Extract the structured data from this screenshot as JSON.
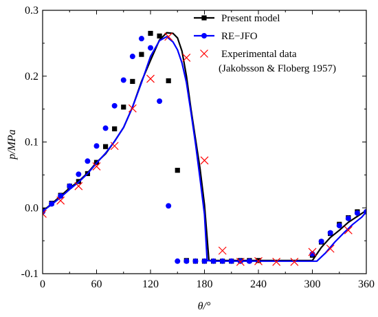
{
  "chart_data": {
    "type": "line",
    "xlabel": "θ/°",
    "ylabel": "p/MPa",
    "xlim": [
      0,
      360
    ],
    "ylim": [
      -0.1,
      0.3
    ],
    "x_ticks": [
      0,
      60,
      120,
      180,
      240,
      300,
      360
    ],
    "x_tick_labels": [
      "0",
      "60",
      "120",
      "180",
      "240",
      "300",
      "360"
    ],
    "y_ticks": [
      -0.1,
      0.0,
      0.1,
      0.2,
      0.3
    ],
    "y_tick_labels": [
      "-0.1",
      "0.0",
      "0.1",
      "0.2",
      "0.3"
    ],
    "legend_position": "top-right",
    "grid": false,
    "series": [
      {
        "name": "Present model",
        "color": "#000000",
        "marker": "square",
        "curve": [
          [
            0,
            -0.005
          ],
          [
            10,
            0.006
          ],
          [
            20,
            0.018
          ],
          [
            30,
            0.03
          ],
          [
            40,
            0.04
          ],
          [
            50,
            0.053
          ],
          [
            60,
            0.069
          ],
          [
            70,
            0.082
          ],
          [
            80,
            0.101
          ],
          [
            90,
            0.122
          ],
          [
            100,
            0.153
          ],
          [
            110,
            0.192
          ],
          [
            120,
            0.224
          ],
          [
            130,
            0.255
          ],
          [
            138,
            0.266
          ],
          [
            145,
            0.265
          ],
          [
            150,
            0.258
          ],
          [
            155,
            0.238
          ],
          [
            160,
            0.2
          ],
          [
            165,
            0.15
          ],
          [
            170,
            0.105
          ],
          [
            175,
            0.06
          ],
          [
            180,
            0.005
          ],
          [
            185,
            -0.08
          ],
          [
            190,
            -0.08
          ],
          [
            300,
            -0.08
          ],
          [
            310,
            -0.06
          ],
          [
            320,
            -0.045
          ],
          [
            330,
            -0.034
          ],
          [
            340,
            -0.022
          ],
          [
            350,
            -0.013
          ],
          [
            360,
            -0.004
          ]
        ],
        "markers": [
          [
            0,
            -0.004
          ],
          [
            10,
            0.007
          ],
          [
            20,
            0.019
          ],
          [
            30,
            0.033
          ],
          [
            40,
            0.04
          ],
          [
            50,
            0.052
          ],
          [
            60,
            0.069
          ],
          [
            70,
            0.093
          ],
          [
            80,
            0.12
          ],
          [
            90,
            0.153
          ],
          [
            100,
            0.192
          ],
          [
            110,
            0.233
          ],
          [
            120,
            0.265
          ],
          [
            130,
            0.261
          ],
          [
            140,
            0.193
          ],
          [
            150,
            0.057
          ],
          [
            160,
            -0.08
          ],
          [
            170,
            -0.081
          ],
          [
            180,
            -0.081
          ],
          [
            190,
            -0.081
          ],
          [
            200,
            -0.081
          ],
          [
            210,
            -0.081
          ],
          [
            220,
            -0.08
          ],
          [
            230,
            -0.08
          ],
          [
            240,
            -0.08
          ],
          [
            300,
            -0.072
          ],
          [
            310,
            -0.052
          ],
          [
            320,
            -0.039
          ],
          [
            330,
            -0.025
          ],
          [
            340,
            -0.015
          ],
          [
            350,
            -0.006
          ]
        ]
      },
      {
        "name": "RE−JFO",
        "color": "#0000ff",
        "marker": "circle",
        "curve": [
          [
            0,
            -0.005
          ],
          [
            10,
            0.005
          ],
          [
            20,
            0.016
          ],
          [
            30,
            0.028
          ],
          [
            40,
            0.039
          ],
          [
            50,
            0.052
          ],
          [
            60,
            0.068
          ],
          [
            70,
            0.083
          ],
          [
            80,
            0.101
          ],
          [
            90,
            0.122
          ],
          [
            100,
            0.153
          ],
          [
            110,
            0.19
          ],
          [
            120,
            0.23
          ],
          [
            130,
            0.254
          ],
          [
            138,
            0.26
          ],
          [
            145,
            0.252
          ],
          [
            150,
            0.24
          ],
          [
            155,
            0.22
          ],
          [
            160,
            0.19
          ],
          [
            165,
            0.145
          ],
          [
            170,
            0.098
          ],
          [
            175,
            0.045
          ],
          [
            180,
            -0.01
          ],
          [
            183,
            -0.08
          ],
          [
            190,
            -0.081
          ],
          [
            305,
            -0.081
          ],
          [
            315,
            -0.068
          ],
          [
            325,
            -0.052
          ],
          [
            335,
            -0.038
          ],
          [
            345,
            -0.025
          ],
          [
            355,
            -0.014
          ],
          [
            360,
            -0.006
          ]
        ],
        "markers": [
          [
            0,
            -0.006
          ],
          [
            10,
            0.006
          ],
          [
            20,
            0.018
          ],
          [
            30,
            0.033
          ],
          [
            40,
            0.051
          ],
          [
            50,
            0.071
          ],
          [
            60,
            0.094
          ],
          [
            70,
            0.121
          ],
          [
            80,
            0.155
          ],
          [
            90,
            0.194
          ],
          [
            100,
            0.23
          ],
          [
            110,
            0.257
          ],
          [
            120,
            0.243
          ],
          [
            130,
            0.162
          ],
          [
            140,
            0.003
          ],
          [
            150,
            -0.081
          ],
          [
            160,
            -0.081
          ],
          [
            170,
            -0.081
          ],
          [
            180,
            -0.081
          ],
          [
            190,
            -0.081
          ],
          [
            200,
            -0.081
          ],
          [
            210,
            -0.081
          ],
          [
            220,
            -0.081
          ],
          [
            230,
            -0.081
          ],
          [
            300,
            -0.07
          ],
          [
            310,
            -0.051
          ],
          [
            320,
            -0.038
          ],
          [
            330,
            -0.027
          ],
          [
            340,
            -0.016
          ],
          [
            350,
            -0.008
          ],
          [
            360,
            -0.006
          ]
        ]
      },
      {
        "name": "Experimental data",
        "name_detail": "(Jakobsson & Floberg  1957)",
        "color": "#ff0000",
        "marker": "x",
        "points": [
          [
            0,
            -0.009
          ],
          [
            20,
            0.011
          ],
          [
            40,
            0.033
          ],
          [
            60,
            0.063
          ],
          [
            80,
            0.094
          ],
          [
            100,
            0.151
          ],
          [
            120,
            0.196
          ],
          [
            140,
            0.26
          ],
          [
            160,
            0.228
          ],
          [
            180,
            0.072
          ],
          [
            200,
            -0.065
          ],
          [
            220,
            -0.082
          ],
          [
            240,
            -0.081
          ],
          [
            260,
            -0.082
          ],
          [
            280,
            -0.082
          ],
          [
            300,
            -0.067
          ],
          [
            320,
            -0.062
          ],
          [
            340,
            -0.034
          ]
        ]
      }
    ]
  }
}
